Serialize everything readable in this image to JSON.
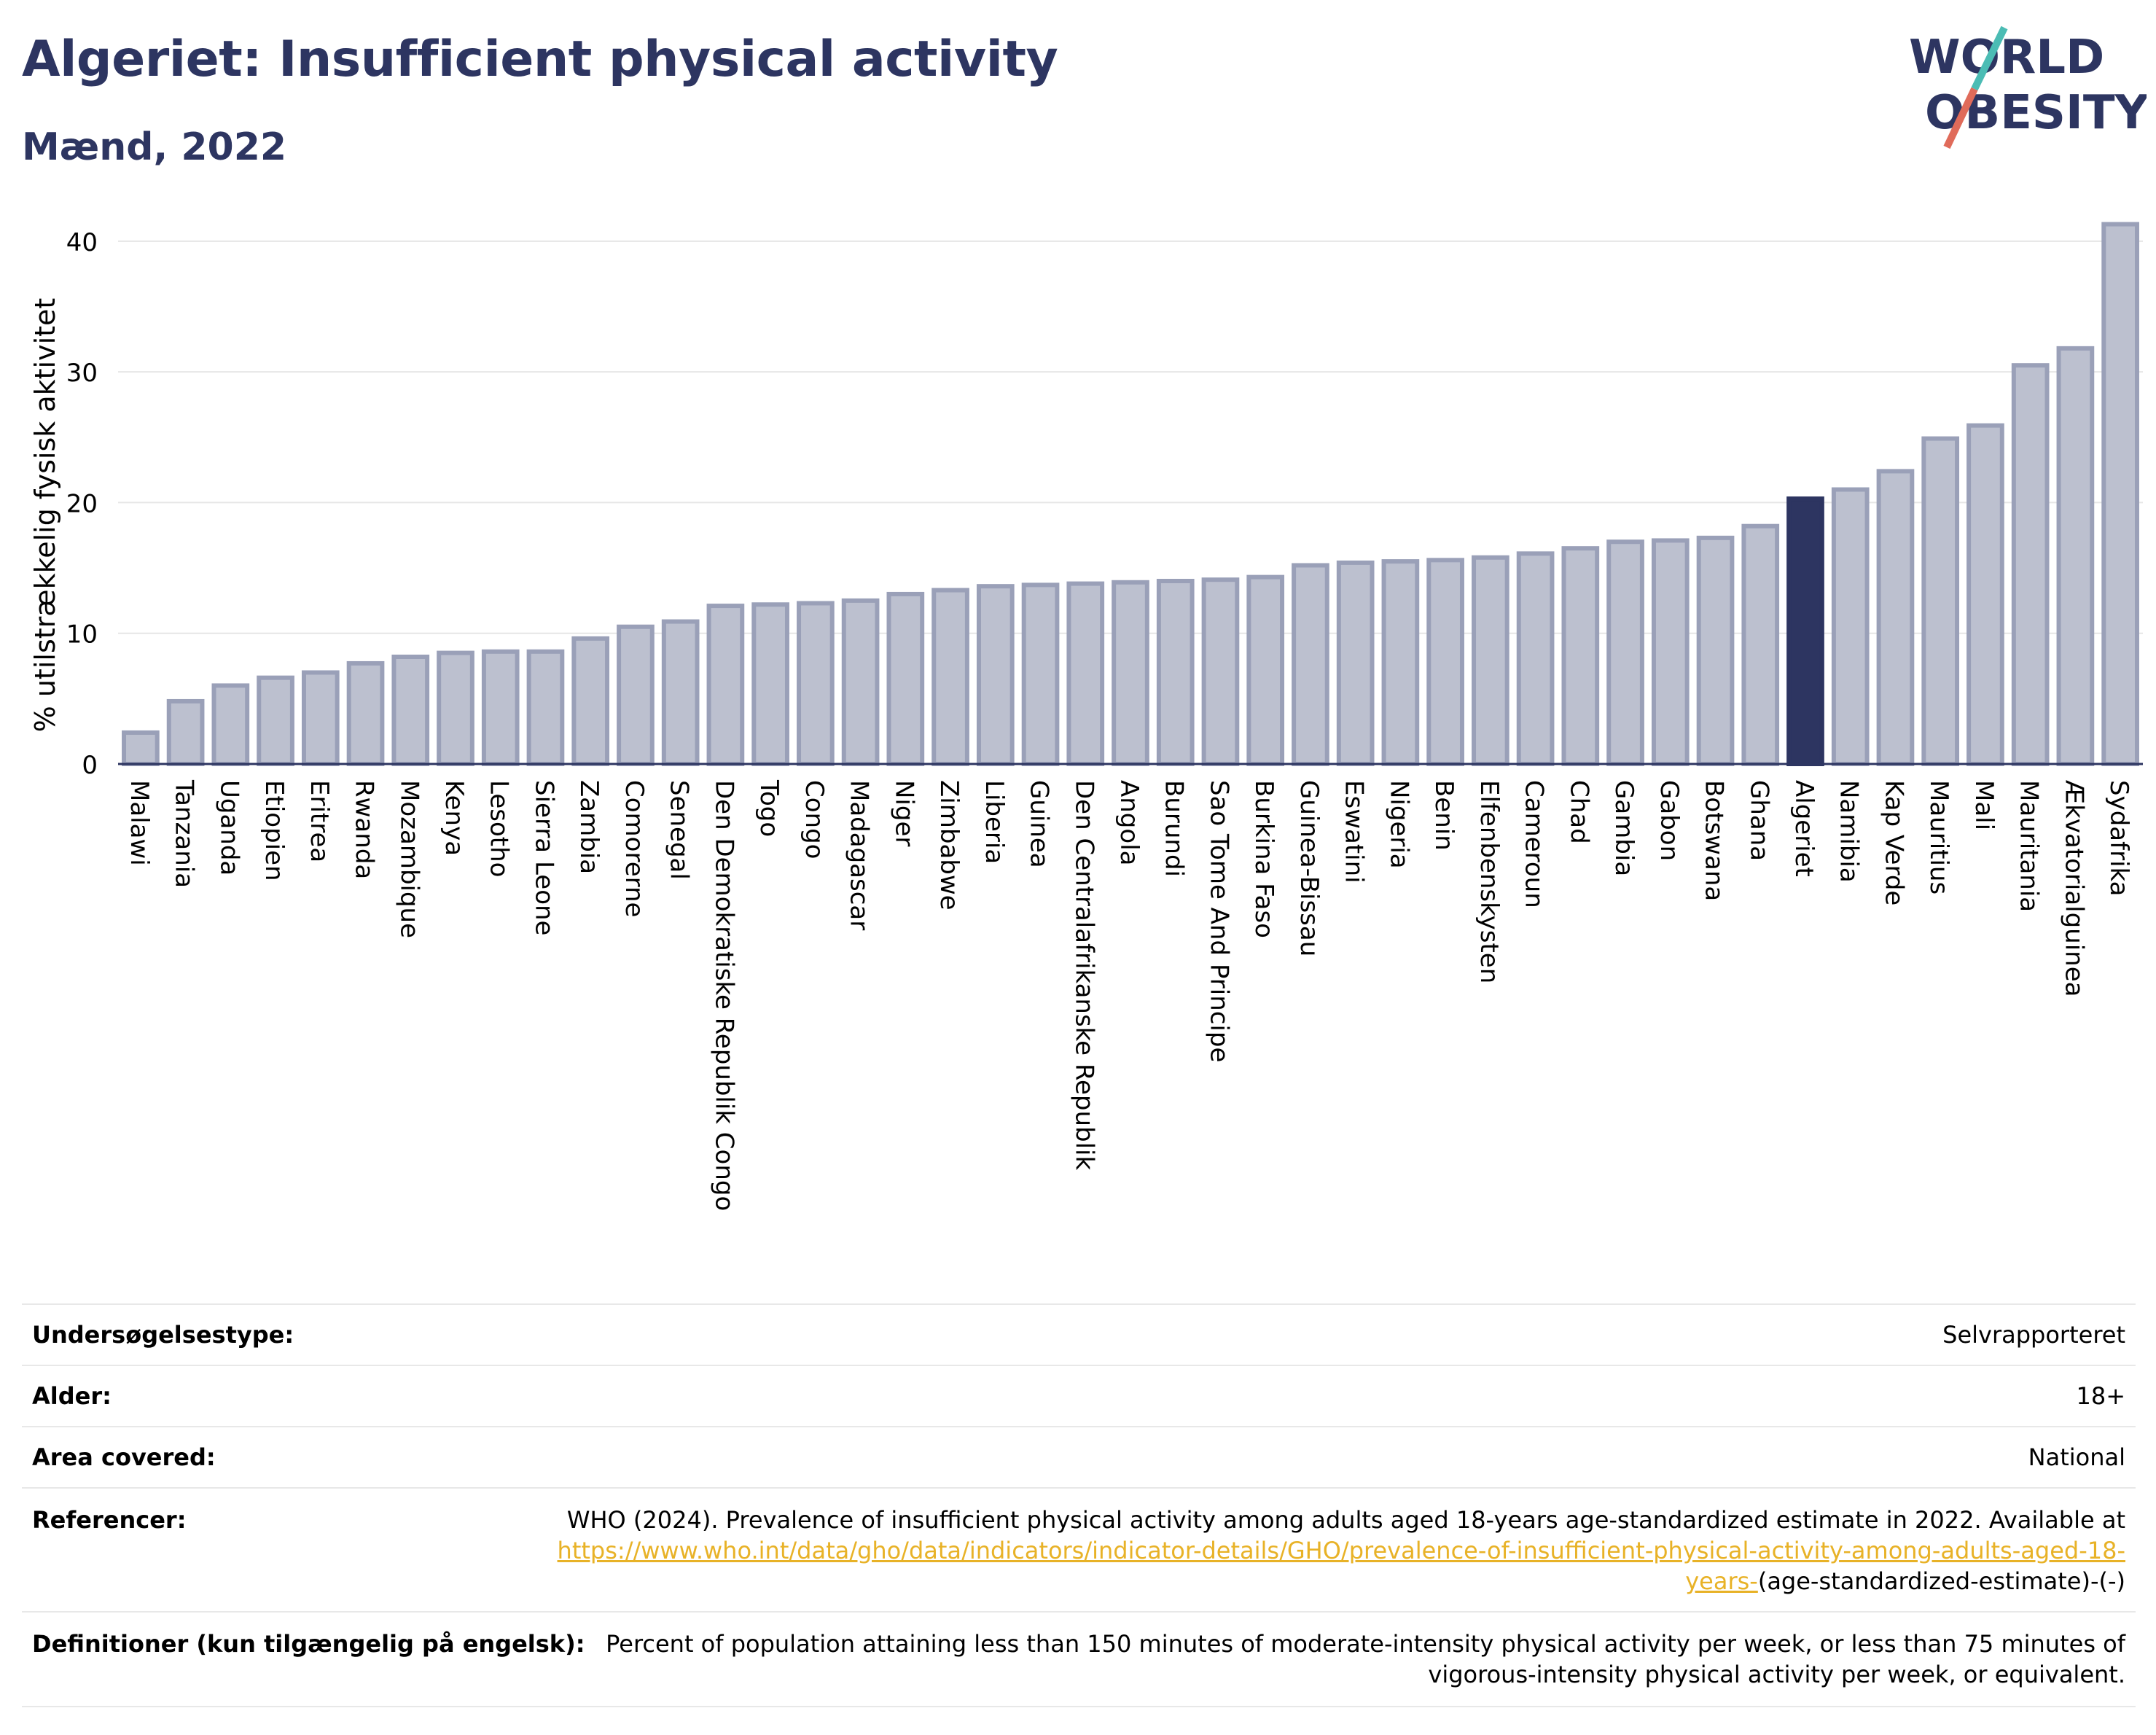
{
  "header": {
    "title": "Algeriet: Insufficient physical activity",
    "subtitle": "Mænd, 2022"
  },
  "logo": {
    "line1": "WORLD",
    "line2": "OBESITY"
  },
  "colors": {
    "bar": "#bcc0cf",
    "bar_border": "#9aa0b8",
    "highlight": "#2d3561",
    "title": "#2d3561",
    "link": "#e8b227"
  },
  "chart_data": {
    "type": "bar",
    "ylabel": "% utilstrækkelig fysisk aktivitet",
    "ylim": [
      0,
      42
    ],
    "yticks": [
      0,
      10,
      20,
      30,
      40
    ],
    "grid": true,
    "highlight": "Algeriet",
    "categories": [
      "Malawi",
      "Tanzania",
      "Uganda",
      "Etiopien",
      "Eritrea",
      "Rwanda",
      "Mozambique",
      "Kenya",
      "Lesotho",
      "Sierra Leone",
      "Zambia",
      "Comorerne",
      "Senegal",
      "Den Demokratiske Republik Congo",
      "Togo",
      "Congo",
      "Madagascar",
      "Niger",
      "Zimbabwe",
      "Liberia",
      "Guinea",
      "Den Centralafrikanske Republik",
      "Angola",
      "Burundi",
      "Sao Tome And Principe",
      "Burkina Faso",
      "Guinea-Bissau",
      "Eswatini",
      "Nigeria",
      "Benin",
      "Elfenbenskysten",
      "Cameroun",
      "Chad",
      "Gambia",
      "Gabon",
      "Botswana",
      "Ghana",
      "Algeriet",
      "Namibia",
      "Kap Verde",
      "Mauritius",
      "Mali",
      "Mauritania",
      "Ækvatorialguinea",
      "Sydafrika"
    ],
    "values": [
      2.4,
      4.8,
      6.0,
      6.6,
      7.0,
      7.7,
      8.2,
      8.5,
      8.6,
      8.6,
      9.6,
      10.5,
      10.9,
      12.1,
      12.2,
      12.3,
      12.5,
      13.0,
      13.3,
      13.6,
      13.7,
      13.8,
      13.9,
      14.0,
      14.1,
      14.3,
      15.2,
      15.4,
      15.5,
      15.6,
      15.8,
      16.1,
      16.5,
      17.0,
      17.1,
      17.3,
      18.2,
      20.3,
      21.0,
      22.4,
      24.9,
      25.9,
      30.5,
      31.8,
      41.3
    ]
  },
  "info": {
    "survey_type_label": "Undersøgelsestype:",
    "survey_type_value": "Selvrapporteret",
    "age_label": "Alder:",
    "age_value": "18+",
    "area_label": "Area covered:",
    "area_value": "National",
    "references_label": "Referencer:",
    "references_text": "WHO (2024). Prevalence of insufficient physical activity among adults aged 18-years age-standardized estimate in 2022. Available at",
    "references_link": "https://www.who.int/data/gho/data/indicators/indicator-details/GHO/prevalence-of-insufficient-physical-activity-among-adults-aged-18-years-",
    "references_tail": "(age-standardized-estimate)-(-)",
    "definitions_label": "Definitioner (kun tilgængelig på engelsk):",
    "definitions_text": "Percent of population attaining less than 150 minutes of moderate-intensity physical activity per week, or less than 75 minutes of vigorous-intensity physical activity per week, or equivalent."
  }
}
